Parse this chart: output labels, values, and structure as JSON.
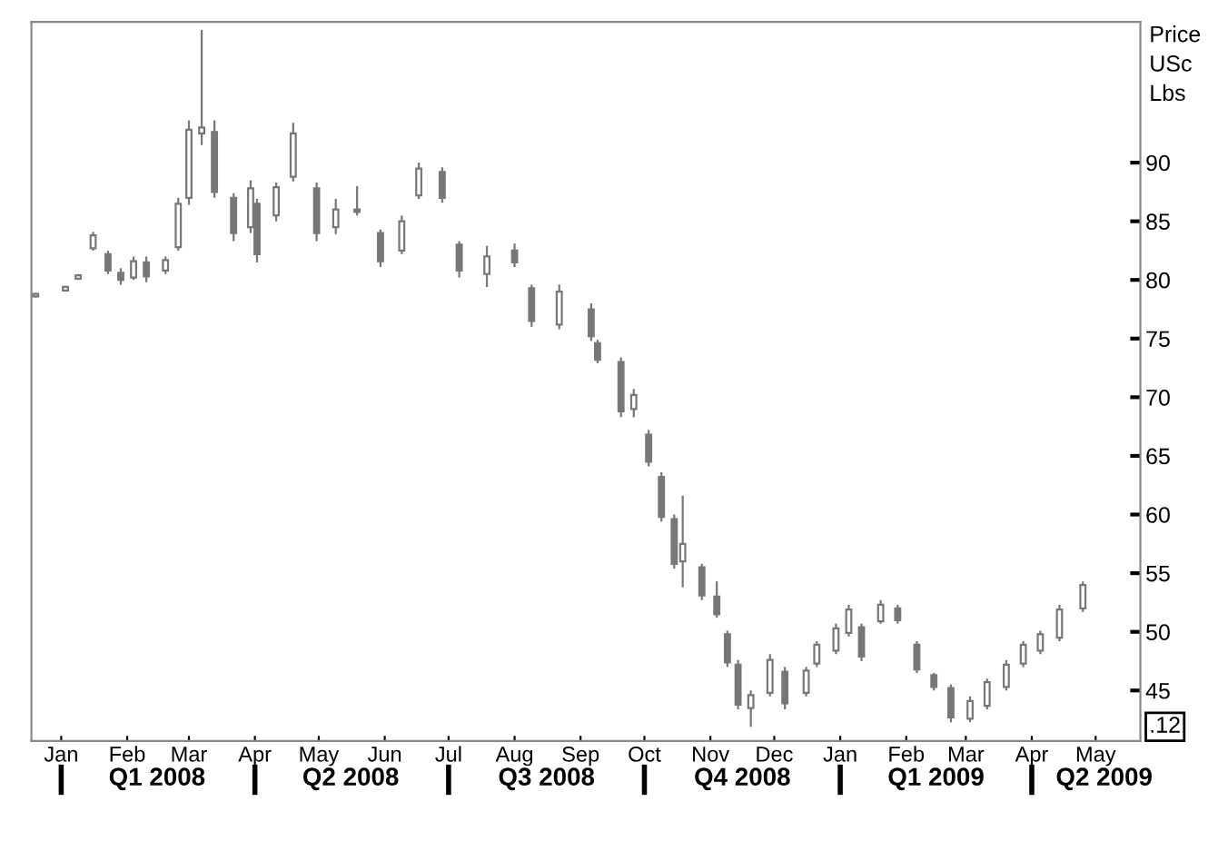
{
  "chart_data": {
    "type": "candlestick",
    "x": [
      "2007-12-20",
      "2008-01-03",
      "2008-01-09",
      "2008-01-16",
      "2008-01-23",
      "2008-01-29",
      "2008-02-04",
      "2008-02-10",
      "2008-02-19",
      "2008-02-25",
      "2008-03-01",
      "2008-03-07",
      "2008-03-13",
      "2008-03-22",
      "2008-03-30",
      "2008-04-02",
      "2008-04-11",
      "2008-04-19",
      "2008-04-30",
      "2008-05-09",
      "2008-05-19",
      "2008-05-30",
      "2008-06-09",
      "2008-06-17",
      "2008-06-28",
      "2008-07-06",
      "2008-07-19",
      "2008-08-01",
      "2008-08-09",
      "2008-08-22",
      "2008-09-06",
      "2008-09-09",
      "2008-09-20",
      "2008-09-26",
      "2008-10-03",
      "2008-10-09",
      "2008-10-15",
      "2008-10-19",
      "2008-10-28",
      "2008-11-04",
      "2008-11-09",
      "2008-11-14",
      "2008-11-20",
      "2008-11-29",
      "2008-12-06",
      "2008-12-16",
      "2008-12-21",
      "2008-12-30",
      "2009-01-05",
      "2009-01-11",
      "2009-01-20",
      "2009-01-28",
      "2009-02-06",
      "2009-02-14",
      "2009-02-22",
      "2009-03-03",
      "2009-03-11",
      "2009-03-20",
      "2009-03-28",
      "2009-04-05",
      "2009-04-14",
      "2009-04-25"
    ],
    "ohlc": [
      [
        78.6,
        78.9,
        78.5,
        78.8
      ],
      [
        79.1,
        79.5,
        79.0,
        79.4
      ],
      [
        80.1,
        80.5,
        80.0,
        80.4
      ],
      [
        82.7,
        84.1,
        82.5,
        83.8
      ],
      [
        82.2,
        82.5,
        80.5,
        80.8
      ],
      [
        80.6,
        81.0,
        79.6,
        80.0
      ],
      [
        80.2,
        82.0,
        80.0,
        81.6
      ],
      [
        81.5,
        82.0,
        79.8,
        80.3
      ],
      [
        80.8,
        82.0,
        80.5,
        81.7
      ],
      [
        82.8,
        87.0,
        82.5,
        86.5
      ],
      [
        87.0,
        93.6,
        86.4,
        92.8
      ],
      [
        92.5,
        101.3,
        91.5,
        93.0
      ],
      [
        92.6,
        93.6,
        87.0,
        87.5
      ],
      [
        87.0,
        87.4,
        83.3,
        84.0
      ],
      [
        84.5,
        88.5,
        84.0,
        87.8
      ],
      [
        86.5,
        86.9,
        81.5,
        82.2
      ],
      [
        85.5,
        88.3,
        85.0,
        87.9
      ],
      [
        88.8,
        93.4,
        88.4,
        92.5
      ],
      [
        87.8,
        88.3,
        83.3,
        84.0
      ],
      [
        84.5,
        86.9,
        83.9,
        86.0
      ],
      [
        86.0,
        88.0,
        85.5,
        85.8
      ],
      [
        84.0,
        84.3,
        81.1,
        81.6
      ],
      [
        82.5,
        85.5,
        82.2,
        85.0
      ],
      [
        87.2,
        90.0,
        86.9,
        89.5
      ],
      [
        89.2,
        89.6,
        86.6,
        87.0
      ],
      [
        83.0,
        83.3,
        80.2,
        80.8
      ],
      [
        80.5,
        82.9,
        79.4,
        82.0
      ],
      [
        82.5,
        83.1,
        81.1,
        81.5
      ],
      [
        79.3,
        79.6,
        76.0,
        76.5
      ],
      [
        76.2,
        79.6,
        75.8,
        79.0
      ],
      [
        77.5,
        78.0,
        74.8,
        75.2
      ],
      [
        74.6,
        74.9,
        72.9,
        73.2
      ],
      [
        73.0,
        73.4,
        68.3,
        68.8
      ],
      [
        69.0,
        70.7,
        68.3,
        70.2
      ],
      [
        66.8,
        67.2,
        64.1,
        64.5
      ],
      [
        63.2,
        63.6,
        59.4,
        59.8
      ],
      [
        59.6,
        60.0,
        55.4,
        55.8
      ],
      [
        56.0,
        61.6,
        53.8,
        57.5
      ],
      [
        55.5,
        55.8,
        52.7,
        53.1
      ],
      [
        53.0,
        54.3,
        51.2,
        51.5
      ],
      [
        49.8,
        50.1,
        47.0,
        47.4
      ],
      [
        47.2,
        47.6,
        43.4,
        43.8
      ],
      [
        43.5,
        45.0,
        41.9,
        44.6
      ],
      [
        44.8,
        48.1,
        44.5,
        47.6
      ],
      [
        46.6,
        47.0,
        43.4,
        43.9
      ],
      [
        44.8,
        47.0,
        44.5,
        46.7
      ],
      [
        47.3,
        49.2,
        47.0,
        48.9
      ],
      [
        48.4,
        50.7,
        48.1,
        50.3
      ],
      [
        49.9,
        52.3,
        49.6,
        51.9
      ],
      [
        50.4,
        50.7,
        47.5,
        47.9
      ],
      [
        50.9,
        52.7,
        50.7,
        52.3
      ],
      [
        52.0,
        52.3,
        50.7,
        51.0
      ],
      [
        48.9,
        49.2,
        46.5,
        46.8
      ],
      [
        46.3,
        46.5,
        45.0,
        45.3
      ],
      [
        45.2,
        45.5,
        42.3,
        42.7
      ],
      [
        42.6,
        44.5,
        42.3,
        44.1
      ],
      [
        43.7,
        46.0,
        43.4,
        45.7
      ],
      [
        45.3,
        47.6,
        45.0,
        47.2
      ],
      [
        47.3,
        49.2,
        47.0,
        48.9
      ],
      [
        48.4,
        50.1,
        48.1,
        49.8
      ],
      [
        49.5,
        52.3,
        49.2,
        51.9
      ],
      [
        52.0,
        54.3,
        51.7,
        54.0
      ]
    ],
    "color": "#777777",
    "ylabel": "Price\nUSc\nLbs",
    "xlim": [
      "2007-12-18",
      "2009-05-22"
    ],
    "xticks": [
      {
        "value": "2008-01-01",
        "label": "Jan"
      },
      {
        "value": "2008-02-01",
        "label": "Feb"
      },
      {
        "value": "2008-03-01",
        "label": "Mar"
      },
      {
        "value": "2008-04-01",
        "label": "Apr"
      },
      {
        "value": "2008-05-01",
        "label": "May"
      },
      {
        "value": "2008-06-01",
        "label": "Jun"
      },
      {
        "value": "2008-07-01",
        "label": "Jul"
      },
      {
        "value": "2008-08-01",
        "label": "Aug"
      },
      {
        "value": "2008-09-01",
        "label": "Sep"
      },
      {
        "value": "2008-10-01",
        "label": "Oct"
      },
      {
        "value": "2008-11-01",
        "label": "Nov"
      },
      {
        "value": "2008-12-01",
        "label": "Dec"
      },
      {
        "value": "2009-01-01",
        "label": "Jan"
      },
      {
        "value": "2009-02-01",
        "label": "Feb"
      },
      {
        "value": "2009-03-01",
        "label": "Mar"
      },
      {
        "value": "2009-04-01",
        "label": "Apr"
      },
      {
        "value": "2009-05-01",
        "label": "May"
      }
    ],
    "x2lim": [
      "2007-12-18",
      "2009-05-22"
    ],
    "x2ticks": [
      {
        "value": "2008-01-01",
        "label": null
      },
      {
        "value": "2008-02-15",
        "label": "Q1 2008"
      },
      {
        "value": "2008-04-01",
        "label": null
      },
      {
        "value": "2008-05-16",
        "label": "Q2 2008"
      },
      {
        "value": "2008-07-01",
        "label": null
      },
      {
        "value": "2008-08-16",
        "label": "Q3 2008"
      },
      {
        "value": "2008-10-01",
        "label": null
      },
      {
        "value": "2008-11-16",
        "label": "Q4 2008"
      },
      {
        "value": "2009-01-01",
        "label": null
      },
      {
        "value": "2009-02-15",
        "label": "Q1 2009"
      },
      {
        "value": "2009-04-01",
        "label": null
      },
      {
        "value": "2009-05-05",
        "label": "Q2 2009"
      }
    ],
    "ylim": [
      40.7,
      102
    ],
    "yticks": [
      45,
      50,
      55,
      60,
      65,
      70,
      75,
      80,
      85,
      90
    ],
    "annotations": [
      ".12"
    ],
    "grid": false,
    "legend": false
  }
}
